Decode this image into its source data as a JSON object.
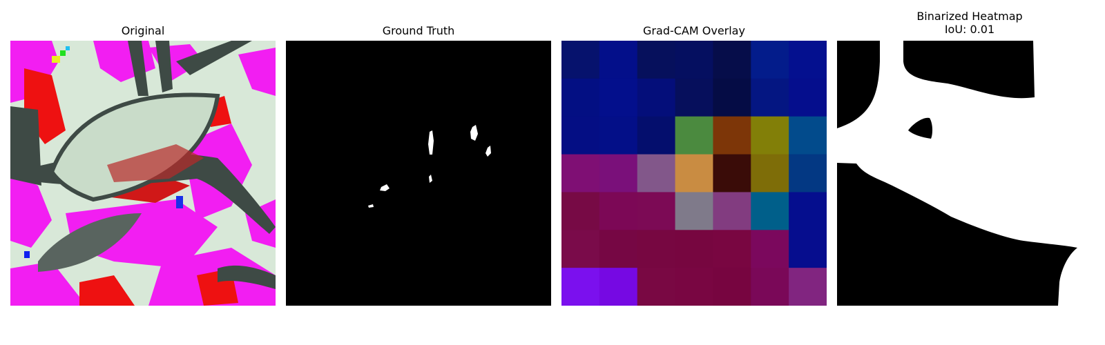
{
  "figure": {
    "panels": [
      {
        "title": "Original"
      },
      {
        "title": "Ground Truth"
      },
      {
        "title": "Grad-CAM Overlay"
      },
      {
        "title_line1": "Binarized Heatmap",
        "title_line2": "IoU: 0.01"
      }
    ]
  },
  "iou": 0.01,
  "colors": {
    "background": "#ffffff",
    "mask_fg": "#ffffff",
    "mask_bg": "#000000",
    "original_magenta": "#f21ef2",
    "original_red": "#ee1111",
    "original_pale": "#d8e8d8",
    "original_leaf": "#3e4a45"
  },
  "gradcam_grid": [
    [
      "#06126d",
      "#030f8a",
      "#06105c",
      "#050f60",
      "#060d4a",
      "#031c8b",
      "#04108f"
    ],
    [
      "#030f83",
      "#030f8c",
      "#040e7a",
      "#060f5c",
      "#050c45",
      "#041682",
      "#050e8d"
    ],
    [
      "#040e84",
      "#030f88",
      "#040e6d",
      "#4b8a3f",
      "#7d3608",
      "#827f08",
      "#024b8c"
    ],
    [
      "#7f0f74",
      "#7a107a",
      "#82578a",
      "#c98c42",
      "#3a0c08",
      "#7e6d08",
      "#033883"
    ],
    [
      "#770a45",
      "#7c0856",
      "#7c0a55",
      "#7f7a8a",
      "#823c80",
      "#005f8a",
      "#050e8e"
    ],
    [
      "#7a0b4a",
      "#760744",
      "#770741",
      "#770640",
      "#790641",
      "#7b085d",
      "#060d8e"
    ],
    [
      "#7b10ee",
      "#7609e3",
      "#790843",
      "#790642",
      "#770540",
      "#7a0858",
      "#812580"
    ]
  ]
}
